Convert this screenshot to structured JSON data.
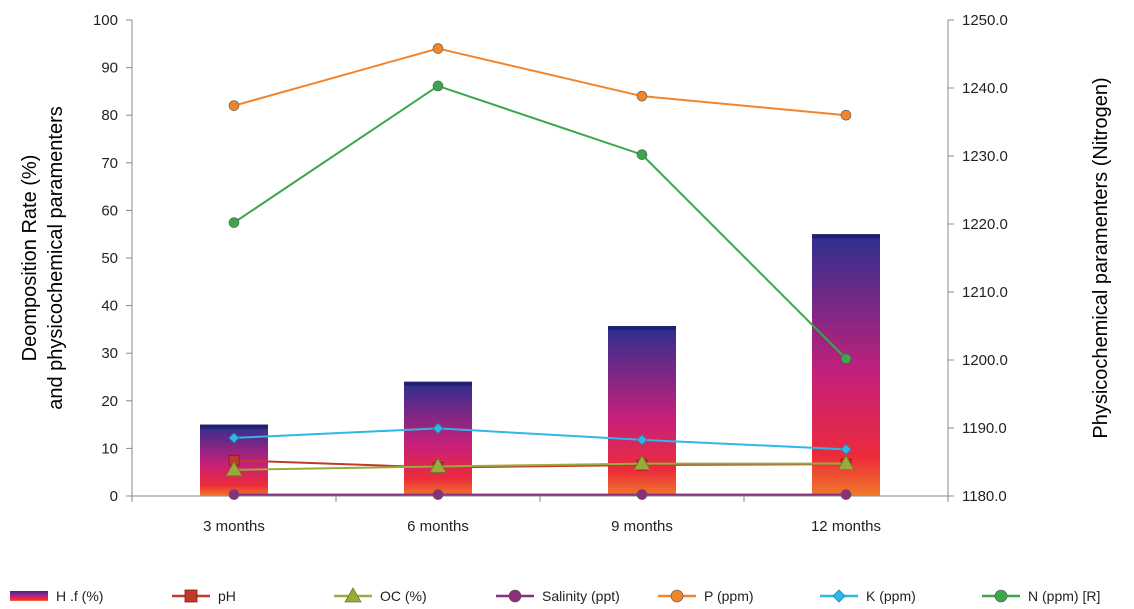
{
  "chart_data": {
    "type": "bar",
    "categories": [
      "3 months",
      "6 months",
      "9 months",
      "12 months"
    ],
    "ylabel_left": [
      "Deomposition  Rate (%)",
      "and physicochemical paramenters"
    ],
    "ylabel_right": "Physicochemical paramenters (Nitrogen)",
    "ylim_left": [
      0,
      100
    ],
    "yticks_left": [
      "0",
      "10",
      "20",
      "30",
      "40",
      "50",
      "60",
      "70",
      "80",
      "90",
      "100"
    ],
    "ylim_right": [
      1180,
      1250
    ],
    "yticks_right": [
      "1180.0",
      "1190.0",
      "1200.0",
      "1210.0",
      "1220.0",
      "1230.0",
      "1240.0",
      "1250.0"
    ],
    "legend_position": "bottom",
    "series": [
      {
        "name": "H .f (%)",
        "kind": "bar",
        "axis": "left",
        "values": [
          15,
          24,
          35.7,
          55
        ],
        "color": "#2b2f8f",
        "color2": "#e8223a"
      },
      {
        "name": "pH",
        "kind": "line",
        "axis": "left",
        "marker": "square",
        "values": [
          7.5,
          6.0,
          6.5,
          6.7
        ],
        "color": "#c0392b"
      },
      {
        "name": "OC (%)",
        "kind": "line",
        "axis": "left",
        "marker": "triangle",
        "values": [
          5.5,
          6.2,
          6.8,
          6.8
        ],
        "color": "#9aab3c"
      },
      {
        "name": "Salinity (ppt)",
        "kind": "line",
        "axis": "left",
        "marker": "circle",
        "values": [
          0.3,
          0.3,
          0.3,
          0.3
        ],
        "color": "#8b2f7a"
      },
      {
        "name": "P (ppm)",
        "kind": "line",
        "axis": "left",
        "marker": "circle",
        "values": [
          82,
          94,
          84,
          80
        ],
        "color": "#f0852d"
      },
      {
        "name": "K (ppm)",
        "kind": "line",
        "axis": "left",
        "marker": "diamond",
        "values": [
          12.2,
          14.2,
          11.8,
          9.8
        ],
        "color": "#2fb7e8"
      },
      {
        "name": "N (ppm) [R]",
        "kind": "line",
        "axis": "right",
        "marker": "circle",
        "values": [
          1220.2,
          1240.3,
          1230.2,
          1200.2
        ],
        "color": "#3aa84a"
      }
    ]
  }
}
